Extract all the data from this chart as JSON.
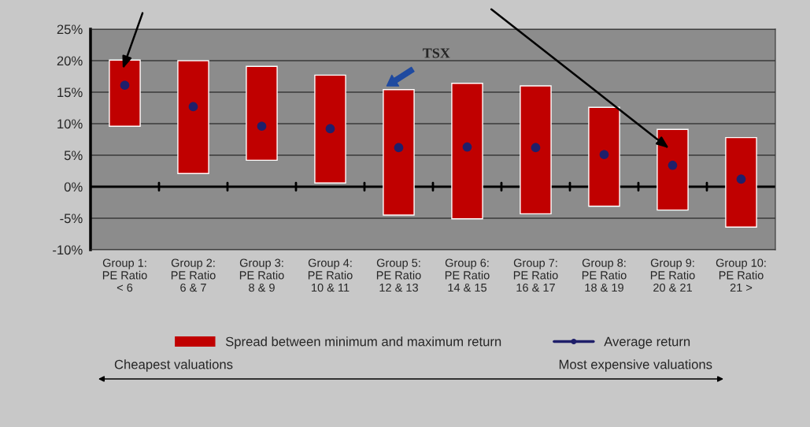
{
  "chart_data": {
    "type": "bar",
    "categories": [
      "Group 1:\nPE Ratio\n< 6",
      "Group 2:\nPE Ratio\n6 & 7",
      "Group 3:\nPE Ratio\n8 & 9",
      "Group 4:\nPE Ratio\n10 & 11",
      "Group 5:\nPE Ratio\n12 & 13",
      "Group 6:\nPE Ratio\n14 & 15",
      "Group 7:\nPE Ratio\n16 & 17",
      "Group 8:\nPE Ratio\n18 & 19",
      "Group 9:\nPE Ratio\n20 & 21",
      "Group 10:\nPE Ratio\n21 >"
    ],
    "series": [
      {
        "name": "Spread between minimum and maximum return",
        "color": "#c00000",
        "base": [
          9.6,
          2.1,
          4.2,
          0.6,
          -4.5,
          -5.1,
          -4.3,
          -3.1,
          -3.7,
          -6.4
        ],
        "values": [
          10.5,
          17.9,
          14.9,
          17.1,
          19.9,
          21.5,
          20.3,
          15.7,
          12.8,
          14.2
        ]
      },
      {
        "name": "Average return",
        "type": "scatter",
        "marker": "circle",
        "color": "#1f1f6a",
        "values": [
          16.1,
          12.7,
          9.6,
          9.2,
          6.2,
          6.3,
          6.2,
          5.1,
          3.4,
          1.2
        ]
      }
    ],
    "ylim": [
      -10,
      25
    ],
    "yticks": [
      {
        "value": -10,
        "label": "-10%"
      },
      {
        "value": -5,
        "label": "-5%"
      },
      {
        "value": 0,
        "label": "0%"
      },
      {
        "value": 5,
        "label": "5%"
      },
      {
        "value": 10,
        "label": "10%"
      },
      {
        "value": 15,
        "label": "15%"
      },
      {
        "value": 20,
        "label": "20%"
      },
      {
        "value": 25,
        "label": "25%"
      }
    ],
    "grid": "y",
    "legend": "bottom",
    "annotations": [
      "TSX",
      "Cheapest valuations",
      "Most expensive valuations"
    ]
  }
}
